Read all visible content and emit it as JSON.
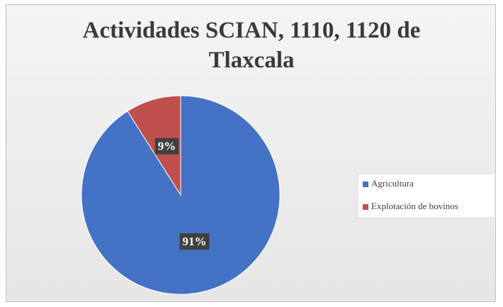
{
  "chart_data": {
    "type": "pie",
    "title": "Actividades SCIAN, 1110, 1120 de Tlaxcala",
    "categories": [
      "Agricultura",
      "Explotación de bovinos"
    ],
    "values": [
      91,
      9
    ],
    "value_labels": [
      "91%",
      "9%"
    ],
    "colors": [
      "#4472c4",
      "#c0504d"
    ],
    "legend": "right"
  }
}
